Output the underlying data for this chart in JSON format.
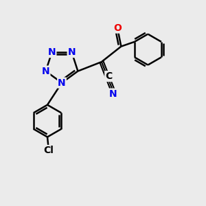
{
  "bg_color": "#ebebeb",
  "bond_color": "#000000",
  "bond_width": 1.8,
  "atom_colors": {
    "N": "#0000ee",
    "O": "#ee0000",
    "Cl": "#000000",
    "C": "#000000"
  },
  "font_size": 10,
  "font_size_cl": 10
}
